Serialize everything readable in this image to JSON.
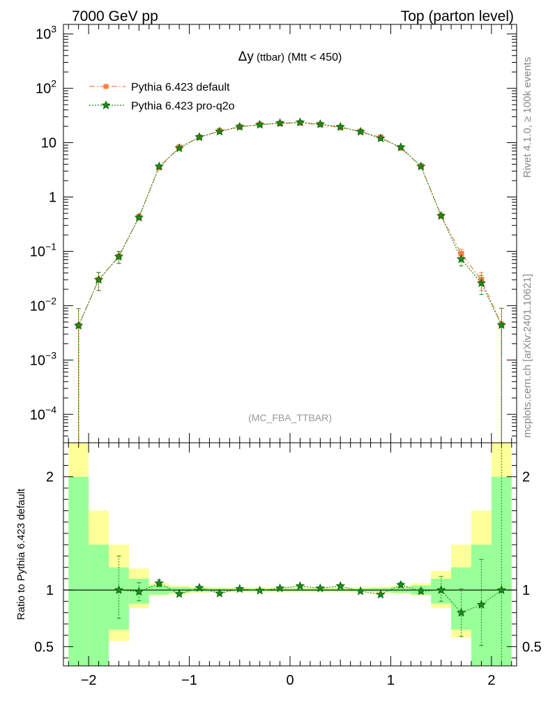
{
  "header": {
    "left_title": "7000 GeV pp",
    "right_title": "Top (parton level)",
    "side_label_top": "Rivet 4.1.0, ≥ 100k events",
    "side_label_bottom": "mcplots.cern.ch [arXiv:2401.10621]"
  },
  "chart_data": [
    {
      "type": "line",
      "title_symbol": "Δy",
      "title_small": " (ttbar)",
      "title_rest": " (Mtt < 450)",
      "watermark": "(MC_FBA_TTBAR)",
      "yscale": "log",
      "xlim": [
        -2.25,
        2.25
      ],
      "ylim": [
        3e-05,
        1500
      ],
      "y_tick_labels": [
        "10^-4",
        "10^-3",
        "10^-2",
        "10^-1",
        "1",
        "10",
        "10^2",
        "10^3"
      ],
      "x": [
        -2.1,
        -1.9,
        -1.7,
        -1.5,
        -1.3,
        -1.1,
        -0.9,
        -0.7,
        -0.5,
        -0.3,
        -0.1,
        0.1,
        0.3,
        0.5,
        0.7,
        0.9,
        1.1,
        1.3,
        1.5,
        1.7,
        1.9,
        2.1
      ],
      "series": [
        {
          "name": "Pythia 6.423 default",
          "color": "#f5803e",
          "marker": "square",
          "line": "dash-dot",
          "values": [
            0.0043,
            0.03,
            0.08,
            0.43,
            3.5,
            8.2,
            12.5,
            16.5,
            19.5,
            21.5,
            22.5,
            23.0,
            21.5,
            19.0,
            16.0,
            12.5,
            8.0,
            3.7,
            0.45,
            0.09,
            0.03,
            0.0045
          ],
          "err_low": [
            0.0043,
            0.011,
            0.02,
            0.04,
            0.2,
            0.3,
            0.4,
            0.5,
            0.5,
            0.5,
            0.5,
            0.5,
            0.5,
            0.5,
            0.5,
            0.4,
            0.3,
            0.2,
            0.04,
            0.02,
            0.011,
            0.0045
          ],
          "err_high": [
            0.0045,
            0.011,
            0.02,
            0.04,
            0.2,
            0.3,
            0.4,
            0.5,
            0.5,
            0.5,
            0.5,
            0.5,
            0.5,
            0.5,
            0.5,
            0.4,
            0.3,
            0.2,
            0.04,
            0.02,
            0.011,
            0.0045
          ]
        },
        {
          "name": "Pythia 6.423 pro-q2o",
          "color": "#1a8c1a",
          "marker": "star",
          "line": "dotted",
          "values": [
            0.0043,
            0.03,
            0.08,
            0.42,
            3.65,
            7.9,
            12.7,
            16.0,
            19.6,
            21.4,
            22.9,
            23.7,
            21.9,
            19.6,
            15.9,
            12.0,
            8.25,
            3.65,
            0.45,
            0.072,
            0.026,
            0.0044
          ],
          "err_low": [
            0.0043,
            0.011,
            0.02,
            0.04,
            0.2,
            0.3,
            0.4,
            0.5,
            0.5,
            0.5,
            0.5,
            0.5,
            0.5,
            0.5,
            0.5,
            0.4,
            0.3,
            0.2,
            0.04,
            0.018,
            0.01,
            0.0044
          ],
          "err_high": [
            0.0045,
            0.011,
            0.02,
            0.04,
            0.2,
            0.3,
            0.4,
            0.5,
            0.5,
            0.5,
            0.5,
            0.5,
            0.5,
            0.5,
            0.5,
            0.4,
            0.3,
            0.2,
            0.04,
            0.018,
            0.01,
            0.0045
          ]
        }
      ]
    },
    {
      "type": "ratio",
      "ylabel": "Ratio to Pythia 6.423 default",
      "xlim": [
        -2.25,
        2.25
      ],
      "ylim": [
        0.33,
        2.3
      ],
      "x_tick_labels": [
        "−2",
        "−1",
        "0",
        "1",
        "2"
      ],
      "y_tick_labels": [
        "0.5",
        "1",
        "2"
      ],
      "band_edges": [
        -2.2,
        -2.0,
        -1.8,
        -1.6,
        -1.4,
        -1.2,
        -1.0,
        -0.8,
        -0.6,
        -0.4,
        -0.2,
        0.0,
        0.2,
        0.4,
        0.6,
        0.8,
        1.0,
        1.2,
        1.4,
        1.6,
        1.8,
        2.0,
        2.2
      ],
      "band_yellow_low": [
        0.0,
        0.0,
        0.55,
        0.84,
        0.95,
        0.965,
        0.975,
        0.98,
        0.98,
        0.98,
        0.98,
        0.98,
        0.98,
        0.98,
        0.98,
        0.975,
        0.965,
        0.95,
        0.84,
        0.58,
        0.0,
        0.0
      ],
      "band_yellow_high": [
        2.5,
        1.7,
        1.4,
        1.19,
        1.06,
        1.04,
        1.03,
        1.025,
        1.025,
        1.025,
        1.025,
        1.025,
        1.025,
        1.025,
        1.025,
        1.03,
        1.04,
        1.06,
        1.17,
        1.4,
        1.7,
        2.5
      ],
      "band_green_low": [
        0.0,
        0.0,
        0.65,
        0.88,
        0.96,
        0.975,
        0.985,
        0.988,
        0.99,
        0.99,
        0.99,
        0.99,
        0.99,
        0.99,
        0.988,
        0.985,
        0.975,
        0.96,
        0.88,
        0.65,
        0.0,
        0.0
      ],
      "band_green_high": [
        2.0,
        1.4,
        1.2,
        1.1,
        1.04,
        1.025,
        1.018,
        1.013,
        1.012,
        1.012,
        1.012,
        1.012,
        1.012,
        1.012,
        1.013,
        1.018,
        1.025,
        1.04,
        1.1,
        1.2,
        1.4,
        2.0
      ],
      "ratio_x": [
        -1.7,
        -1.5,
        -1.3,
        -1.1,
        -0.9,
        -0.7,
        -0.5,
        -0.3,
        -0.1,
        0.1,
        0.3,
        0.5,
        0.7,
        0.9,
        1.1,
        1.3,
        1.5,
        1.7,
        1.9,
        2.1
      ],
      "ratio_values": [
        1.0,
        0.985,
        1.06,
        0.965,
        1.02,
        0.97,
        1.01,
        0.995,
        1.015,
        1.035,
        1.015,
        1.035,
        0.99,
        0.96,
        1.045,
        0.99,
        1.0,
        0.8,
        0.87,
        1.0
      ],
      "ratio_err_low": [
        0.25,
        0.08,
        0.03,
        0.0,
        0.0,
        0.0,
        0.0,
        0.0,
        0.0,
        0.0,
        0.0,
        0.0,
        0.0,
        0.0,
        0.02,
        0.02,
        0.1,
        0.21,
        0.36,
        1.0
      ],
      "ratio_err_high": [
        0.3,
        0.08,
        0.03,
        0.0,
        0.0,
        0.0,
        0.0,
        0.0,
        0.0,
        0.0,
        0.0,
        0.0,
        0.0,
        0.0,
        0.02,
        0.02,
        0.12,
        0.21,
        0.4,
        1.5
      ],
      "reference_value": 1.0
    }
  ]
}
